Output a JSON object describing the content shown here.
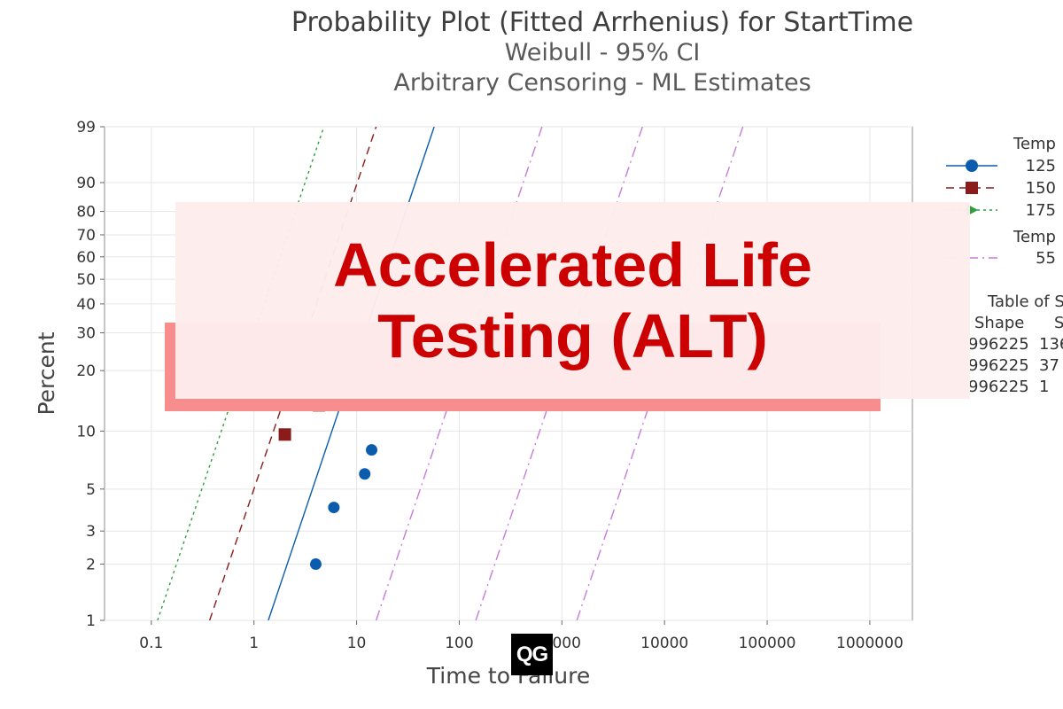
{
  "chart_data": {
    "type": "scatter",
    "title": "Probability Plot (Fitted Arrhenius) for StartTime",
    "subtitle_1": "Weibull - 95% CI",
    "subtitle_2": "Arbitrary Censoring - ML Estimates",
    "xlabel": "Time to Failure",
    "ylabel": "Percent",
    "x_scale": "log",
    "y_scale": "weibull-probability",
    "xlim": [
      0.035,
      2600000
    ],
    "ylim": [
      1,
      99
    ],
    "x_ticks": [
      "0.1",
      "1",
      "10",
      "100",
      "1000",
      "10000",
      "100000",
      "1000000"
    ],
    "y_ticks": [
      "1",
      "2",
      "3",
      "5",
      "10",
      "20",
      "30",
      "40",
      "50",
      "60",
      "70",
      "80",
      "90",
      "99"
    ],
    "grid": true,
    "legend_position": "right",
    "legend_groups": [
      {
        "heading": "Temp",
        "entries": [
          "125",
          "150",
          "175"
        ]
      },
      {
        "heading": "Temp",
        "entries": [
          "55"
        ]
      }
    ],
    "table_of_statistics": {
      "title_visible": "Table of S",
      "columns_visible": [
        "Shape",
        "S"
      ],
      "shape_values_visible": [
        "996225",
        "996225",
        "996225"
      ],
      "scale_values_visible": [
        "136",
        "37",
        "1"
      ]
    },
    "series": [
      {
        "name": "125",
        "color": "#0b5cad",
        "marker": "circle",
        "line": "solid",
        "points": [
          {
            "x": 4,
            "y": 2
          },
          {
            "x": 6,
            "y": 4
          },
          {
            "x": 12,
            "y": 6
          },
          {
            "x": 14,
            "y": 8
          }
        ],
        "fit_line": [
          {
            "x": 1.38,
            "y": 1
          },
          {
            "x": 57,
            "y": 99
          }
        ]
      },
      {
        "name": "150",
        "color": "#8b1a1a",
        "marker": "square",
        "line": "dashed",
        "points": [
          {
            "x": 2,
            "y": 9.6
          },
          {
            "x": 4.3,
            "y": 13.5
          }
        ],
        "fit_line": [
          {
            "x": 0.37,
            "y": 1
          },
          {
            "x": 15.5,
            "y": 99
          }
        ]
      },
      {
        "name": "175",
        "color": "#2e9e3e",
        "marker": "triangle-right",
        "line": "dotted",
        "points": [],
        "fit_line": [
          {
            "x": 0.115,
            "y": 1
          },
          {
            "x": 4.8,
            "y": 99
          }
        ]
      },
      {
        "name": "55",
        "color": "#c77cdb",
        "marker": "none",
        "line": "dashdot",
        "points": [],
        "fit_line": [
          {
            "x": 15.5,
            "y": 1
          },
          {
            "x": 640,
            "y": 99
          }
        ],
        "ci_lines": [
          [
            {
              "x": 145,
              "y": 1
            },
            {
              "x": 6100,
              "y": 99
            }
          ],
          [
            {
              "x": 1400,
              "y": 1
            },
            {
              "x": 58000,
              "y": 99
            }
          ]
        ]
      }
    ]
  },
  "banner": {
    "text": "Accelerated Life Testing (ALT)"
  },
  "logo": {
    "text": "QG"
  }
}
